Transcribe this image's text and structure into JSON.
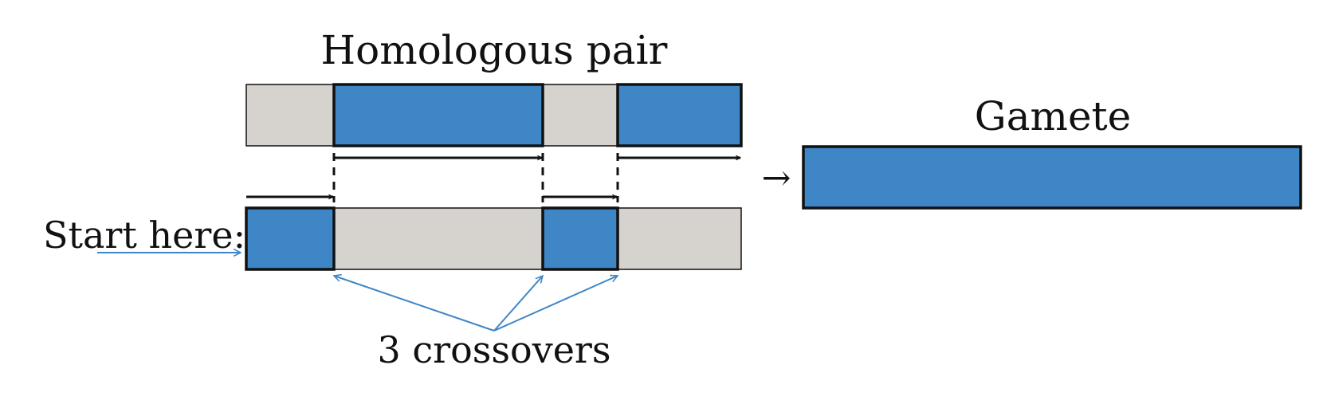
{
  "title": "Homologous pair",
  "gamete_label": "Gamete",
  "start_label": "Start here:",
  "crossover_label": "3 crossovers",
  "result_arrow": "→",
  "colors": {
    "chromosome_blue": "#3f86c6",
    "chromosome_grey": "#d6d2cd",
    "outline": "#111111",
    "annotation_blue": "#3f86c6"
  },
  "chromosomes": {
    "top": [
      "grey",
      "blue",
      "grey",
      "blue"
    ],
    "bottom": [
      "blue",
      "grey",
      "blue",
      "grey"
    ],
    "gamete": [
      "blue"
    ]
  },
  "crossover_count": 3
}
